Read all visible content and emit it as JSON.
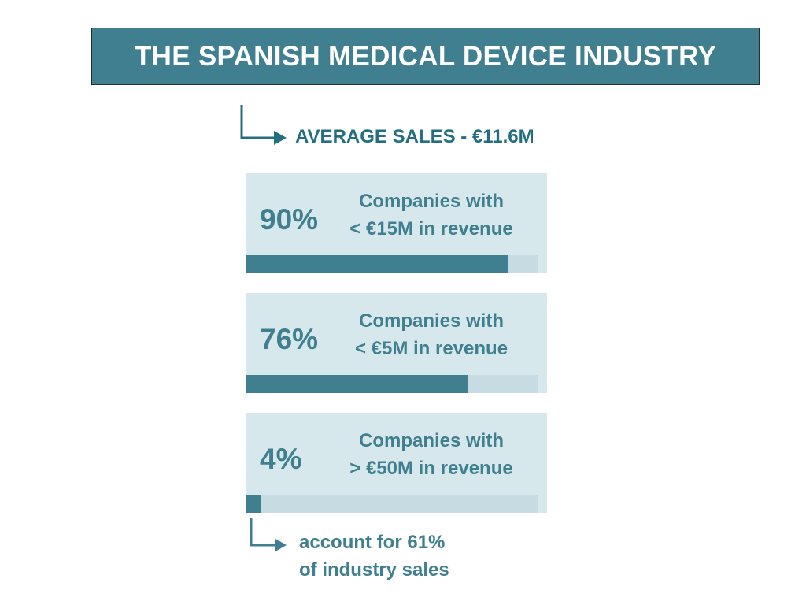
{
  "header": {
    "title": "THE SPANISH MEDICAL DEVICE INDUSTRY"
  },
  "average": {
    "label": "AVERAGE SALES - €11.6M"
  },
  "chart_data": {
    "type": "bar",
    "categories": [
      "90%",
      "76%",
      "4%"
    ],
    "series": [
      {
        "values": [
          90,
          76,
          4
        ]
      }
    ],
    "ylim": [
      0,
      100
    ],
    "cards": [
      {
        "percent": "90%",
        "line1": "Companies with",
        "line2": "< €15M in revenue",
        "value": 90
      },
      {
        "percent": "76%",
        "line1": "Companies with",
        "line2": "< €5M in revenue",
        "value": 76
      },
      {
        "percent": "4%",
        "line1": "Companies with",
        "line2": "> €50M in revenue",
        "value": 4
      }
    ]
  },
  "footnote": {
    "line1": "account for 61%",
    "line2": "of industry sales"
  },
  "colors": {
    "accent": "#3f7f8f",
    "card_bg": "#d7e8ed",
    "track": "#c7dce2",
    "text_dark": "#246f7f"
  }
}
